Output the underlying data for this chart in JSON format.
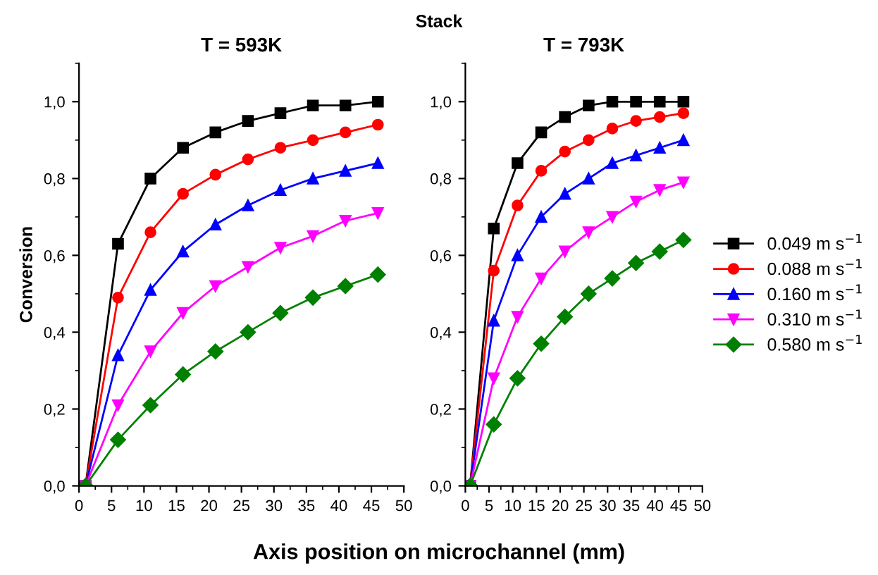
{
  "chart_data": [
    {
      "type": "line",
      "title": "T = 593K",
      "ylabel": "Conversion",
      "xlabel": "Axis position on microchannel (mm)",
      "annotations": [
        "Stack"
      ],
      "x": [
        1,
        6,
        11,
        16,
        21,
        26,
        31,
        36,
        41,
        46
      ],
      "series": [
        {
          "color": "#000000",
          "marker": "square",
          "values": [
            0,
            0.63,
            0.8,
            0.88,
            0.92,
            0.95,
            0.97,
            0.99,
            0.99,
            1.0
          ]
        },
        {
          "color": "#ff0000",
          "marker": "circle",
          "values": [
            0,
            0.49,
            0.66,
            0.76,
            0.81,
            0.85,
            0.88,
            0.9,
            0.92,
            0.94
          ]
        },
        {
          "color": "#0000ff",
          "marker": "triangle",
          "values": [
            0,
            0.34,
            0.51,
            0.61,
            0.68,
            0.73,
            0.77,
            0.8,
            0.82,
            0.84
          ]
        },
        {
          "color": "#ff00ff",
          "marker": "triangle_down",
          "values": [
            0,
            0.21,
            0.35,
            0.45,
            0.52,
            0.57,
            0.62,
            0.65,
            0.69,
            0.71
          ]
        },
        {
          "color": "#008000",
          "marker": "diamond",
          "values": [
            0,
            0.12,
            0.21,
            0.29,
            0.35,
            0.4,
            0.45,
            0.49,
            0.52,
            0.55
          ]
        }
      ],
      "xlim": [
        0,
        50
      ],
      "ylim": [
        0,
        1.1
      ],
      "xticks": [
        0,
        5,
        10,
        15,
        20,
        25,
        30,
        35,
        40,
        45,
        50
      ],
      "yticks": [
        {
          "value": 0,
          "label": "0,0"
        },
        {
          "value": 0.2,
          "label": "0,2"
        },
        {
          "value": 0.4,
          "label": "0,4"
        },
        {
          "value": 0.6,
          "label": "0,6"
        },
        {
          "value": 0.8,
          "label": "0,8"
        },
        {
          "value": 1.0,
          "label": "1,0"
        }
      ],
      "grid": false,
      "legend": false
    },
    {
      "type": "line",
      "title": "T = 793K",
      "x": [
        1,
        6,
        11,
        16,
        21,
        26,
        31,
        36,
        41,
        46
      ],
      "series": [
        {
          "name": "0.049 m s$^{−1}$",
          "color": "#000000",
          "marker": "square",
          "values": [
            0,
            0.67,
            0.84,
            0.92,
            0.96,
            0.99,
            1.0,
            1.0,
            1.0,
            1.0
          ]
        },
        {
          "name": "0.088 m s$^{−1}$",
          "color": "#ff0000",
          "marker": "circle",
          "values": [
            0,
            0.56,
            0.73,
            0.82,
            0.87,
            0.9,
            0.93,
            0.95,
            0.96,
            0.97
          ]
        },
        {
          "name": "0.160 m s$^{−1}$",
          "color": "#0000ff",
          "marker": "triangle",
          "values": [
            0,
            0.43,
            0.6,
            0.7,
            0.76,
            0.8,
            0.84,
            0.86,
            0.88,
            0.9
          ]
        },
        {
          "name": "0.310 m s$^{−1}$",
          "color": "#ff00ff",
          "marker": "triangle_down",
          "values": [
            0,
            0.28,
            0.44,
            0.54,
            0.61,
            0.66,
            0.7,
            0.74,
            0.77,
            0.79
          ]
        },
        {
          "name": "0.580 m s$^{−1}$",
          "color": "#008000",
          "marker": "diamond",
          "values": [
            0,
            0.16,
            0.28,
            0.37,
            0.44,
            0.5,
            0.54,
            0.58,
            0.61,
            0.64
          ]
        }
      ],
      "xlim": [
        0,
        50
      ],
      "ylim": [
        0,
        1.1
      ],
      "xticks": [
        0,
        5,
        10,
        15,
        20,
        25,
        30,
        35,
        40,
        45,
        50
      ],
      "yticks": [
        {
          "value": 0,
          "label": "0,0"
        },
        {
          "value": 0.2,
          "label": "0,2"
        },
        {
          "value": 0.4,
          "label": "0,4"
        },
        {
          "value": 0.6,
          "label": "0,6"
        },
        {
          "value": 0.8,
          "label": "0,8"
        },
        {
          "value": 1.0,
          "label": "1,0"
        }
      ],
      "grid": false,
      "legend": "right"
    }
  ]
}
